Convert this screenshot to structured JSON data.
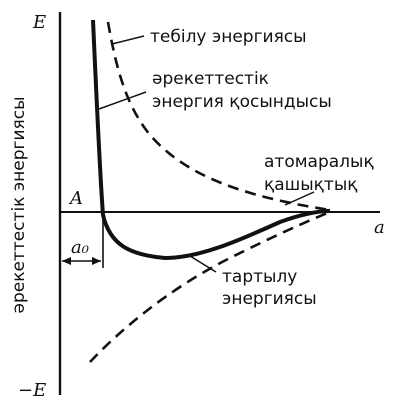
{
  "diagram": {
    "y_axis_top_label": "E",
    "y_axis_bottom_label": "−E",
    "y_axis_title": "әрекеттестік  энергиясы",
    "x_axis_label": "a",
    "point_label": "A",
    "equilibrium_label": "a₀",
    "curves": {
      "repulsion_label": "тебілу энергиясы",
      "total_label_line1": "әрекеттестік",
      "total_label_line2": "энергия қосындысы",
      "attraction_label_line1": "тартылу",
      "attraction_label_line2": "энергиясы"
    },
    "distance_label_line1": "атомаралық",
    "distance_label_line2": "қашықтық"
  }
}
